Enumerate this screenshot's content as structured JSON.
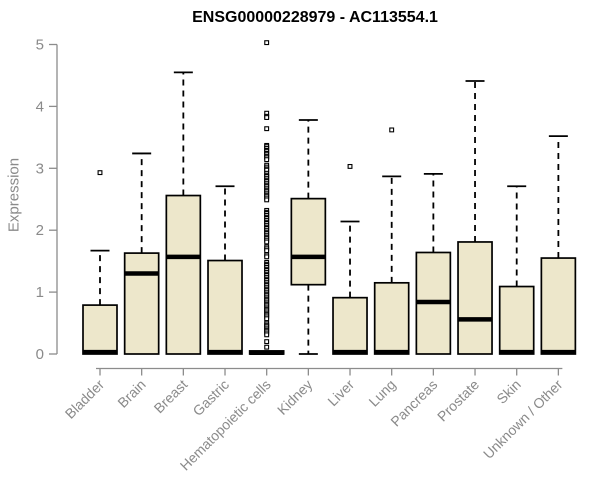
{
  "chart_data": {
    "type": "boxplot",
    "title": "ENSG00000228979 - AC113554.1",
    "ylabel": "Expression",
    "xlabel": "",
    "ylim": [
      0,
      5
    ],
    "yticks": [
      0,
      1,
      2,
      3,
      4,
      5
    ],
    "grid": false,
    "legend": "none",
    "box_fill_color": "#ede7cb",
    "box_stroke_color": "#000000",
    "axis_color": "#8c8c8c",
    "axis_text_color": "#8a8a8a",
    "categories": [
      "Bladder",
      "Brain",
      "Breast",
      "Gastric",
      "Hematopoietic cells",
      "Kidney",
      "Liver",
      "Lung",
      "Pancreas",
      "Prostate",
      "Skin",
      "Unknown / Other"
    ],
    "series": [
      {
        "label": "Bladder",
        "q1": 0,
        "median": 0.03,
        "q3": 0.79,
        "whisker_low": 0,
        "whisker_high": 1.67,
        "outliers": [
          2.93
        ]
      },
      {
        "label": "Brain",
        "q1": 0,
        "median": 1.3,
        "q3": 1.63,
        "whisker_low": 0,
        "whisker_high": 3.24,
        "outliers": []
      },
      {
        "label": "Breast",
        "q1": 0,
        "median": 1.57,
        "q3": 2.56,
        "whisker_low": 0,
        "whisker_high": 4.55,
        "outliers": []
      },
      {
        "label": "Gastric",
        "q1": 0,
        "median": 0.03,
        "q3": 1.51,
        "whisker_low": 0,
        "whisker_high": 2.71,
        "outliers": []
      },
      {
        "label": "Hematopoietic cells",
        "q1": 0,
        "median": 0.02,
        "q3": 0.05,
        "whisker_low": 0,
        "whisker_high": 0.05,
        "outliers": [
          5.03,
          3.89,
          3.84,
          3.82,
          3.64,
          3.37,
          3.35,
          3.32,
          3.29,
          3.27,
          3.24,
          3.22,
          3.19,
          3.17,
          3.14,
          3.05,
          3.02,
          2.99,
          2.97,
          2.92,
          2.89,
          2.87,
          2.84,
          2.81,
          2.79,
          2.76,
          2.73,
          2.71,
          2.68,
          2.65,
          2.63,
          2.6,
          2.57,
          2.55,
          2.52,
          2.49,
          2.32,
          2.29,
          2.27,
          2.24,
          2.21,
          2.19,
          2.16,
          2.13,
          2.11,
          2.08,
          2.05,
          2.03,
          2.0,
          1.97,
          1.95,
          1.92,
          1.89,
          1.87,
          1.84,
          1.81,
          1.73,
          1.7,
          1.67,
          1.6,
          1.57,
          1.48,
          1.45,
          1.43,
          1.4,
          1.37,
          1.35,
          1.32,
          1.29,
          1.27,
          1.24,
          1.21,
          1.19,
          1.16,
          1.13,
          1.11,
          1.08,
          1.05,
          1.03,
          1.0,
          0.97,
          0.95,
          0.92,
          0.89,
          0.87,
          0.84,
          0.81,
          0.79,
          0.76,
          0.73,
          0.71,
          0.68,
          0.65,
          0.63,
          0.6,
          0.57,
          0.5,
          0.47,
          0.45,
          0.42,
          0.39,
          0.37,
          0.34,
          0.31,
          0.2,
          0.11
        ]
      },
      {
        "label": "Kidney",
        "q1": 1.12,
        "median": 1.57,
        "q3": 2.51,
        "whisker_low": 0,
        "whisker_high": 3.78,
        "outliers": []
      },
      {
        "label": "Liver",
        "q1": 0,
        "median": 0.03,
        "q3": 0.91,
        "whisker_low": 0,
        "whisker_high": 2.14,
        "outliers": [
          3.03
        ]
      },
      {
        "label": "Lung",
        "q1": 0,
        "median": 0.03,
        "q3": 1.15,
        "whisker_low": 0,
        "whisker_high": 2.87,
        "outliers": [
          3.62
        ]
      },
      {
        "label": "Pancreas",
        "q1": 0,
        "median": 0.84,
        "q3": 1.64,
        "whisker_low": 0,
        "whisker_high": 2.91,
        "outliers": []
      },
      {
        "label": "Prostate",
        "q1": 0,
        "median": 0.56,
        "q3": 1.81,
        "whisker_low": 0,
        "whisker_high": 4.41,
        "outliers": []
      },
      {
        "label": "Skin",
        "q1": 0,
        "median": 0.03,
        "q3": 1.09,
        "whisker_low": 0,
        "whisker_high": 2.71,
        "outliers": []
      },
      {
        "label": "Unknown / Other",
        "q1": 0,
        "median": 0.03,
        "q3": 1.55,
        "whisker_low": 0,
        "whisker_high": 3.52,
        "outliers": []
      }
    ]
  }
}
